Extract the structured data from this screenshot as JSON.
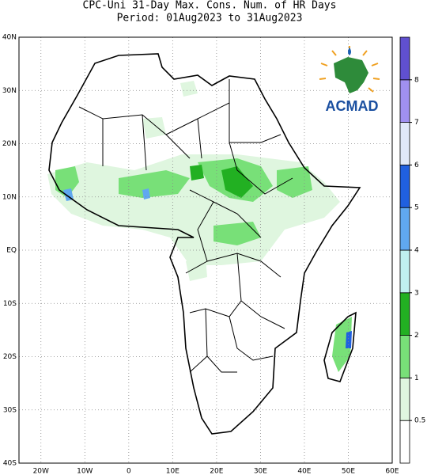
{
  "header": {
    "title": "CPC-Uni 31-Day Max. Cons. Num. of HR Days",
    "subtitle": "Period: 01Aug2023 to 31Aug2023"
  },
  "map": {
    "xlim": [
      -25,
      60
    ],
    "ylim": [
      -40,
      40
    ],
    "xticks": [
      {
        "value": -20,
        "label": "20W"
      },
      {
        "value": -10,
        "label": "10W"
      },
      0,
      {
        "value": 10,
        "label": "10E"
      },
      {
        "value": 20,
        "label": "20E"
      },
      {
        "value": 30,
        "label": "30E"
      },
      {
        "value": 40,
        "label": "40E"
      },
      {
        "value": 50,
        "label": "50E"
      },
      {
        "value": 60,
        "label": "60E"
      }
    ],
    "yticks": [
      {
        "value": 40,
        "label": "40N"
      },
      {
        "value": 30,
        "label": "30N"
      },
      {
        "value": 20,
        "label": "20N"
      },
      {
        "value": 10,
        "label": "10N"
      },
      {
        "value": 0,
        "label": "EQ"
      },
      {
        "value": -10,
        "label": "10S"
      },
      {
        "value": -20,
        "label": "20S"
      },
      {
        "value": -30,
        "label": "30S"
      },
      {
        "value": -40,
        "label": "40S"
      }
    ]
  },
  "colorbar": {
    "levels": [
      0.5,
      1,
      2,
      3,
      4,
      5,
      6,
      7,
      8
    ],
    "colors": [
      "#ffffff",
      "#dff6df",
      "#78e078",
      "#22b022",
      "#c0f0f0",
      "#60a8f0",
      "#2060e0",
      "#e0e8f8",
      "#a090f0",
      "#6050d0"
    ]
  },
  "logo": {
    "text": "ACMAD"
  }
}
